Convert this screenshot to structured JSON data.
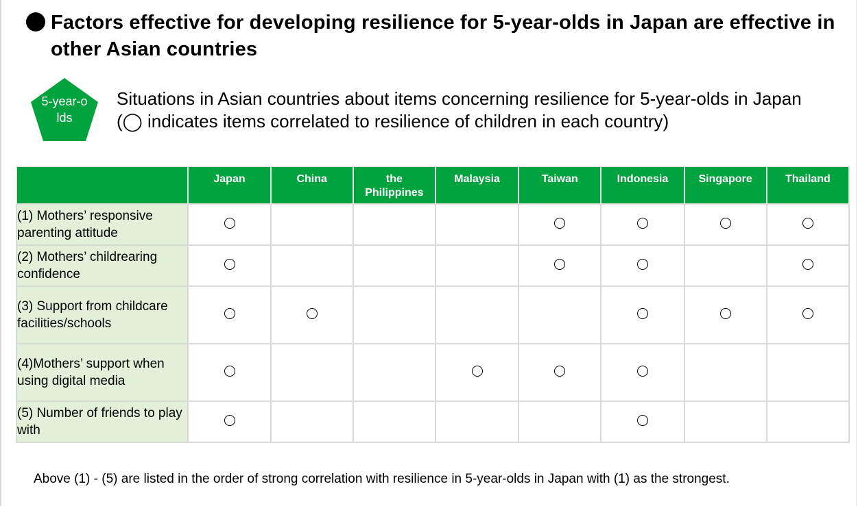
{
  "heading": {
    "text": "Factors effective for developing resilience for 5-year-olds in Japan are effective in other Asian countries"
  },
  "badge": {
    "label": "5-year-olds",
    "color": "#00a33d"
  },
  "subtitle": {
    "line1": "Situations in Asian countries about items concerning resilience for 5-year-olds in Japan",
    "line2": "(◯ indicates items correlated to resilience of children in each country)"
  },
  "table": {
    "header_color": "#00a33d",
    "label_color": "#e2efd9",
    "columns": [
      "Japan",
      "China",
      "the Philippines",
      "Malaysia",
      "Taiwan",
      "Indonesia",
      "Singapore",
      "Thailand"
    ],
    "rows": [
      {
        "label": "(1) Mothers’ responsive parenting attitude",
        "marks": [
          true,
          false,
          false,
          false,
          true,
          true,
          true,
          true
        ]
      },
      {
        "label": "(2) Mothers’ childrearing confidence",
        "marks": [
          true,
          false,
          false,
          false,
          true,
          true,
          false,
          true
        ]
      },
      {
        "label": "(3) Support from childcare facilities/schools",
        "marks": [
          true,
          true,
          false,
          false,
          false,
          true,
          true,
          true
        ]
      },
      {
        "label": "(4)Mothers’ support when using digital media",
        "marks": [
          true,
          false,
          false,
          true,
          true,
          true,
          false,
          false
        ]
      },
      {
        "label": "(5) Number of friends to play with",
        "marks": [
          true,
          false,
          false,
          false,
          false,
          true,
          false,
          false
        ]
      }
    ]
  },
  "footnote": "Above (1) - (5) are listed in the order of strong correlation with resilience in 5-year-olds in Japan with (1) as the strongest."
}
